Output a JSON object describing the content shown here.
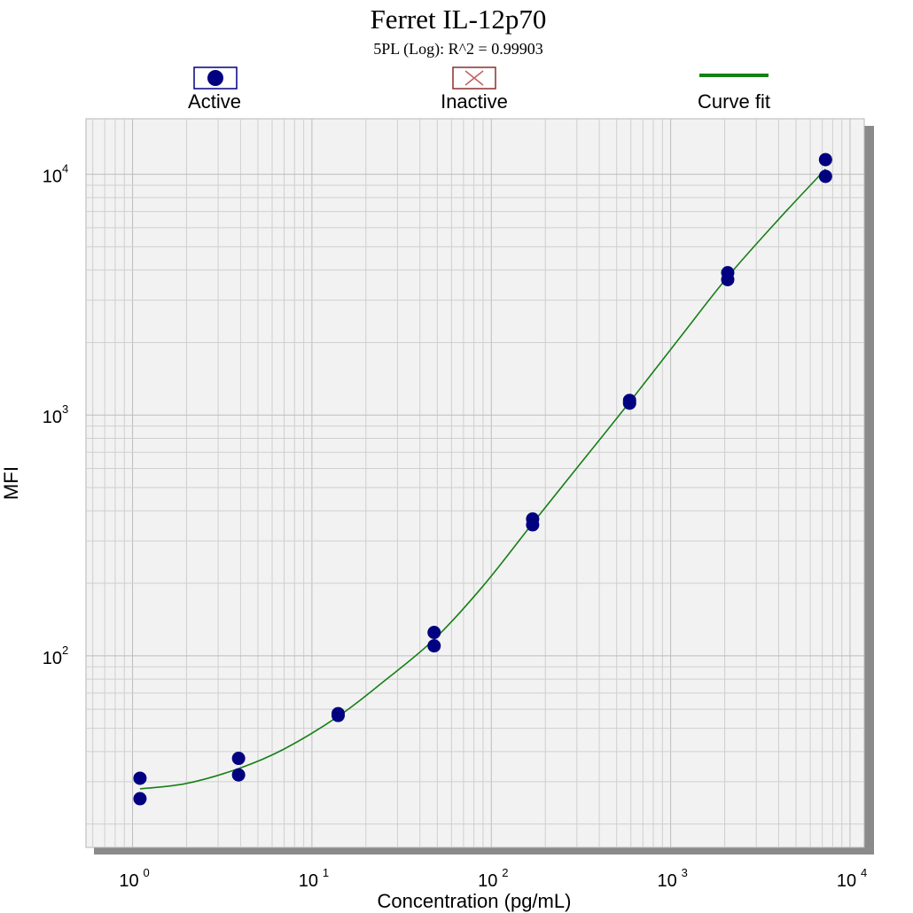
{
  "chart_data": {
    "type": "scatter",
    "title": "Ferret IL-12p70",
    "subtitle": "5PL (Log): R^2 = 0.99903",
    "xlabel": "Concentration (pg/mL)",
    "ylabel": "MFI",
    "xscale": "log",
    "yscale": "log",
    "xlim": [
      0.55,
      12000
    ],
    "ylim": [
      16,
      17000
    ],
    "grid": true,
    "legend_position": "top",
    "x_ticks": [
      {
        "base": "10",
        "exp": "0",
        "value": 1
      },
      {
        "base": "10",
        "exp": "1",
        "value": 10
      },
      {
        "base": "10",
        "exp": "2",
        "value": 100
      },
      {
        "base": "10",
        "exp": "3",
        "value": 1000
      },
      {
        "base": "10",
        "exp": "4",
        "value": 10000
      }
    ],
    "y_ticks": [
      {
        "base": "10",
        "exp": "2",
        "value": 100
      },
      {
        "base": "10",
        "exp": "3",
        "value": 1000
      },
      {
        "base": "10",
        "exp": "4",
        "value": 10000
      }
    ],
    "legend": [
      {
        "label": "Active",
        "kind": "active-marker",
        "color": "#000080"
      },
      {
        "label": "Inactive",
        "kind": "inactive-marker",
        "color": "#8b2f2f"
      },
      {
        "label": "Curve fit",
        "kind": "line",
        "color": "#168016"
      }
    ],
    "series": [
      {
        "name": "Active",
        "color": "#000080",
        "points": [
          {
            "x": 1.1,
            "y": 31
          },
          {
            "x": 1.1,
            "y": 25.5
          },
          {
            "x": 3.9,
            "y": 37.5
          },
          {
            "x": 3.9,
            "y": 32
          },
          {
            "x": 14,
            "y": 57.5
          },
          {
            "x": 14,
            "y": 56.5
          },
          {
            "x": 48,
            "y": 125
          },
          {
            "x": 48,
            "y": 110
          },
          {
            "x": 170,
            "y": 370
          },
          {
            "x": 170,
            "y": 350
          },
          {
            "x": 590,
            "y": 1150
          },
          {
            "x": 590,
            "y": 1120
          },
          {
            "x": 2080,
            "y": 3900
          },
          {
            "x": 2080,
            "y": 3650
          },
          {
            "x": 7300,
            "y": 11500
          },
          {
            "x": 7300,
            "y": 9800
          }
        ]
      },
      {
        "name": "Curve fit",
        "color": "#168016",
        "line": [
          {
            "x": 1.1,
            "y": 28
          },
          {
            "x": 2,
            "y": 29.5
          },
          {
            "x": 3.9,
            "y": 34
          },
          {
            "x": 7,
            "y": 41
          },
          {
            "x": 14,
            "y": 56
          },
          {
            "x": 25,
            "y": 78
          },
          {
            "x": 48,
            "y": 117
          },
          {
            "x": 90,
            "y": 195
          },
          {
            "x": 170,
            "y": 355
          },
          {
            "x": 320,
            "y": 640
          },
          {
            "x": 590,
            "y": 1130
          },
          {
            "x": 1100,
            "y": 2050
          },
          {
            "x": 2080,
            "y": 3750
          },
          {
            "x": 4000,
            "y": 6500
          },
          {
            "x": 7300,
            "y": 10500
          }
        ]
      }
    ]
  }
}
